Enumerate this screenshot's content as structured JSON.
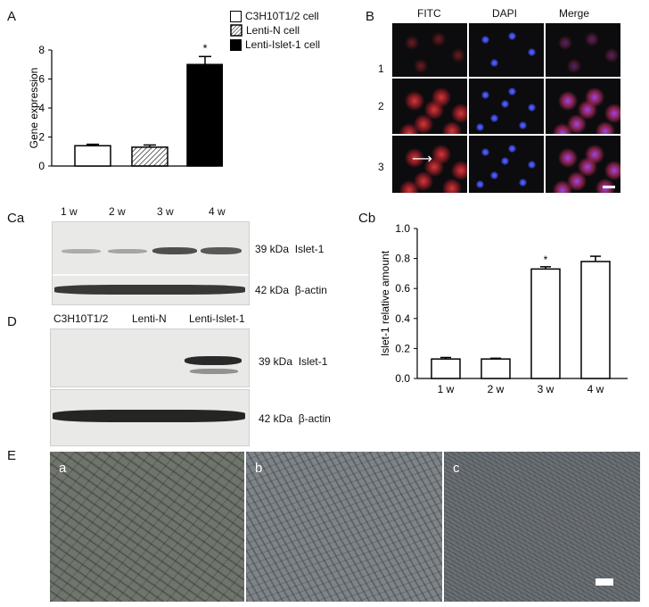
{
  "panels": {
    "A": {
      "label": "A"
    },
    "B": {
      "label": "B"
    },
    "Ca": {
      "label": "Ca"
    },
    "Cb": {
      "label": "Cb"
    },
    "D": {
      "label": "D"
    },
    "E": {
      "label": "E"
    }
  },
  "panelA": {
    "ylabel": "Gene expression",
    "legend": [
      "C3H10T1/2 cell",
      "Lenti-N cell",
      "Lenti-Islet-1 cell"
    ],
    "yticks": [
      "0",
      "2",
      "4",
      "6",
      "8"
    ],
    "sig": "*"
  },
  "panelB": {
    "columns": [
      "FITC",
      "DAPI",
      "Merge"
    ],
    "rows": [
      "1",
      "2",
      "3"
    ]
  },
  "panelCa": {
    "lanes": [
      "1 w",
      "2 w",
      "3 w",
      "4 w"
    ],
    "bands": [
      {
        "kda": "39 kDa",
        "name": "Islet-1"
      },
      {
        "kda": "42 kDa",
        "name": "β-actin"
      }
    ]
  },
  "panelD": {
    "lanes": [
      "C3H10T1/2",
      "Lenti-N",
      "Lenti-Islet-1"
    ],
    "bands": [
      {
        "kda": "39 kDa",
        "name": "Islet-1"
      },
      {
        "kda": "42 kDa",
        "name": "β-actin"
      }
    ]
  },
  "panelE": {
    "sublabels": [
      "a",
      "b",
      "c"
    ]
  },
  "chart_data": [
    {
      "type": "bar",
      "panel": "A",
      "categories": [
        "C3H10T1/2 cell",
        "Lenti-N cell",
        "Lenti-Islet-1 cell"
      ],
      "values": [
        1.4,
        1.3,
        7.0
      ],
      "errors": [
        0.1,
        0.15,
        0.55
      ],
      "ylabel": "Gene expression",
      "ylim": [
        0,
        8
      ],
      "yticks": [
        0,
        2,
        4,
        6,
        8
      ],
      "fills": [
        "#ffffff",
        "hatch",
        "#000000"
      ],
      "significant": [
        false,
        false,
        true
      ]
    },
    {
      "type": "bar",
      "panel": "Cb",
      "categories": [
        "1 w",
        "2 w",
        "3 w",
        "4 w"
      ],
      "values": [
        0.13,
        0.13,
        0.73,
        0.78
      ],
      "errors": [
        0.01,
        0.005,
        0.015,
        0.035
      ],
      "ylabel": "Islet-1 relative amount",
      "ylim": [
        0,
        1.0
      ],
      "yticks": [
        0.0,
        0.2,
        0.4,
        0.6,
        0.8,
        1.0
      ],
      "tick_labels": [
        "0.0",
        "0.2",
        "0.4",
        "0.6",
        "0.8",
        "1.0"
      ],
      "significant": [
        false,
        false,
        true,
        false
      ],
      "sig": "*"
    }
  ]
}
